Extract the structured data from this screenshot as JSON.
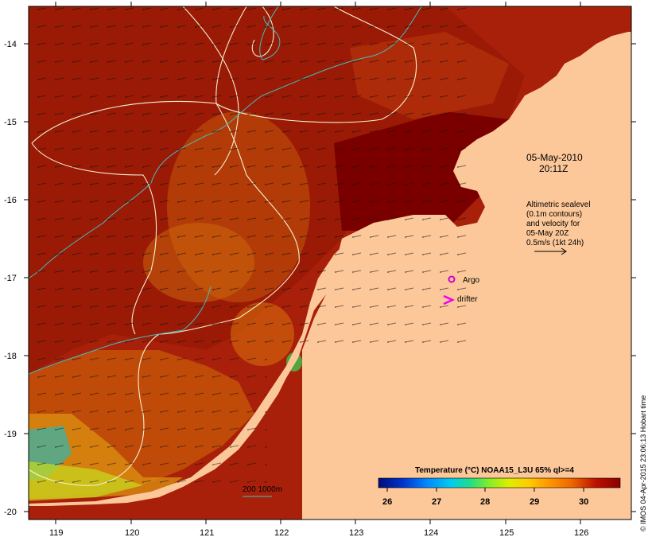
{
  "map": {
    "date_line1": "05-May-2010",
    "date_line2": "20:11Z",
    "legend_lines": [
      "Altimetric sealevel",
      "(0.1m contours)",
      "and velocity for",
      "05-May 20Z",
      "0.5m/s (1kt 24h)"
    ],
    "argo_label": "Argo",
    "drifter_label": "drifter",
    "bathy_label": "200  1000m",
    "colorbar": {
      "title": "Temperature (°C) NOAA15_L3U 65% ql>=4",
      "ticks": [
        "26",
        "27",
        "28",
        "29",
        "30"
      ],
      "colors": [
        "#000c7a",
        "#0033cc",
        "#0088ff",
        "#00ccee",
        "#22dd88",
        "#88ee22",
        "#ddee00",
        "#ffcc00",
        "#ff9900",
        "#ee6600",
        "#dd3300",
        "#bb1100",
        "#8b0000"
      ]
    },
    "credit": "© IMOS 04-Apr-2015 23:06:13 Hobart time",
    "lat_labels": [
      "-14",
      "-15",
      "-16",
      "-17",
      "-18",
      "-19",
      "-20"
    ],
    "lon_labels": [
      "119",
      "120",
      "121",
      "122",
      "123",
      "124",
      "125",
      "126"
    ],
    "colors": {
      "land": "#fcc89a",
      "sea_warm": "#a8200a",
      "sea_hot": "#7a0000",
      "contour": "#f4f0d0",
      "bathy": "#40c0c0",
      "argo": "#cc00cc",
      "drifter": "#ee00ee"
    }
  }
}
